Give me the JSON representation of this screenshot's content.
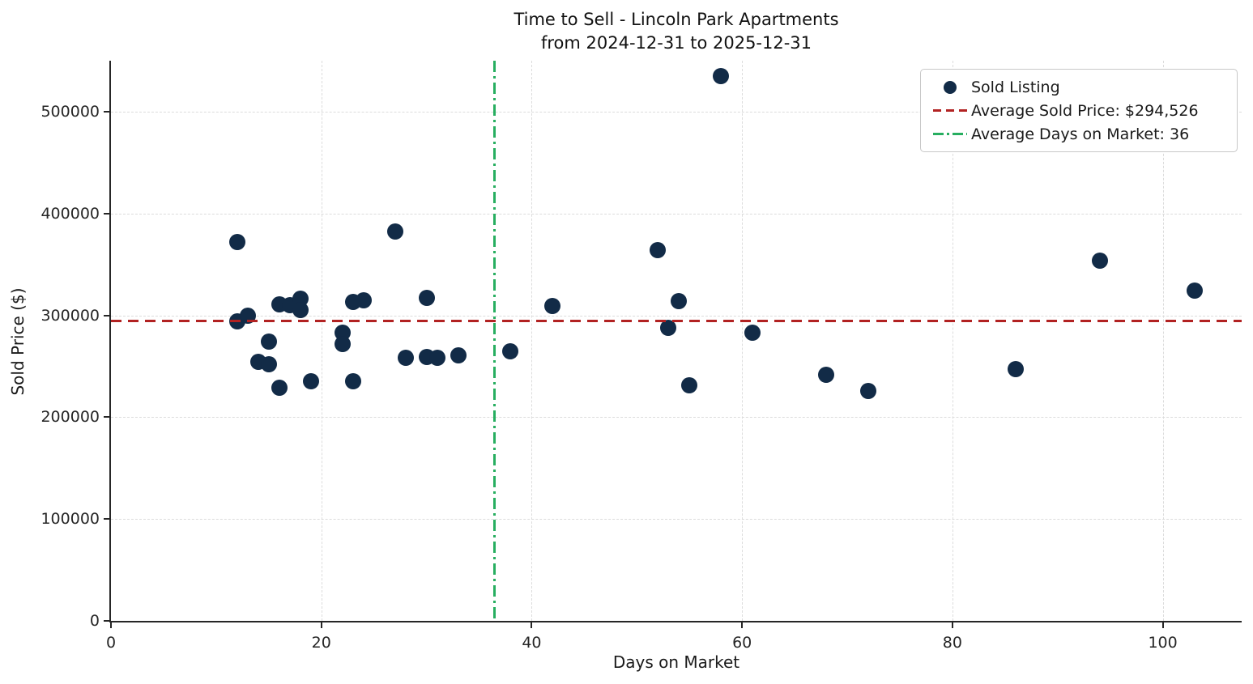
{
  "title": {
    "line1": "Time to Sell - Lincoln Park Apartments",
    "line2": "from 2024-12-31 to 2025-12-31"
  },
  "colors": {
    "dot": "#122b47",
    "avg_price_line": "#b22222",
    "avg_days_line": "#27ae60",
    "grid": "#dcdcdc",
    "spine": "#262626"
  },
  "chart_data": {
    "type": "scatter",
    "title": "Time to Sell - Lincoln Park Apartments from 2024-12-31 to 2025-12-31",
    "xlabel": "Days on Market",
    "ylabel": "Sold Price ($)",
    "xlim": [
      0,
      107.5
    ],
    "ylim": [
      0,
      550000
    ],
    "xticks": [
      0,
      20,
      40,
      60,
      80,
      100
    ],
    "yticks": [
      0,
      100000,
      200000,
      300000,
      400000,
      500000
    ],
    "grid": true,
    "legend_position": "upper right",
    "series_label": "Sold Listing",
    "points": [
      [
        12,
        372000
      ],
      [
        12,
        294000
      ],
      [
        13,
        300000
      ],
      [
        14,
        254000
      ],
      [
        15,
        252000
      ],
      [
        15,
        274000
      ],
      [
        16,
        229000
      ],
      [
        16,
        311000
      ],
      [
        17,
        310000
      ],
      [
        18,
        316000
      ],
      [
        18,
        305000
      ],
      [
        19,
        235000
      ],
      [
        22,
        283000
      ],
      [
        22,
        272000
      ],
      [
        23,
        313000
      ],
      [
        23,
        235000
      ],
      [
        24,
        315000
      ],
      [
        27,
        382000
      ],
      [
        28,
        258000
      ],
      [
        30,
        317000
      ],
      [
        30,
        259000
      ],
      [
        31,
        258000
      ],
      [
        33,
        261000
      ],
      [
        38,
        265000
      ],
      [
        42,
        309000
      ],
      [
        52,
        364000
      ],
      [
        53,
        288000
      ],
      [
        54,
        314000
      ],
      [
        55,
        231000
      ],
      [
        58,
        535000
      ],
      [
        61,
        283000
      ],
      [
        68,
        242000
      ],
      [
        72,
        226000
      ],
      [
        86,
        247000
      ],
      [
        94,
        354000
      ],
      [
        103,
        324000
      ]
    ],
    "avg_price_line": {
      "y": 294526,
      "label": "Average Sold Price: $294,526"
    },
    "avg_days_line": {
      "x": 36.5,
      "label": "Average Days on Market: 36"
    },
    "legend": [
      "Sold Listing",
      "Average Sold Price: $294,526",
      "Average Days on Market: 36"
    ]
  }
}
